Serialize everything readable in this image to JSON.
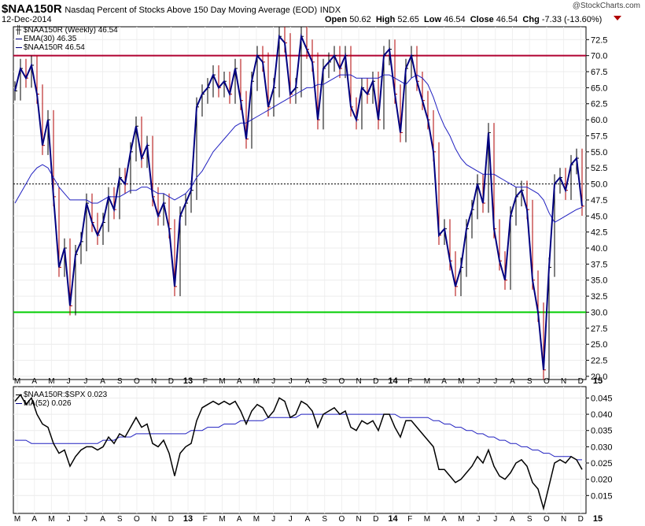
{
  "header": {
    "symbol": "$NAA150R",
    "description": "Nasdaq Percent of Stocks Above 150 Day Moving Average (EOD)",
    "exchange": "INDX",
    "date": "12-Dec-2014",
    "open_label": "Open",
    "open": "50.62",
    "high_label": "High",
    "high": "52.65",
    "low_label": "Low",
    "low": "46.54",
    "close_label": "Close",
    "close": "46.54",
    "chg_label": "Chg",
    "chg": "-7.33 (-13.60%)",
    "watermark": "@StockCharts.com"
  },
  "legend_main": {
    "price": "$NAA150R (Weekly) 46.54",
    "ema": "EMA(30) 46.35",
    "line": "$NAA150R 46.54"
  },
  "legend_lower": {
    "ratio": "$NAA150R:$SPX 0.023",
    "ma": "MA(52) 0.026"
  },
  "colors": {
    "price_up": "#000000",
    "price_down": "#b00000",
    "line": "#000080",
    "ema": "#2020c0",
    "level_70": "#b00030",
    "level_30": "#00cc00",
    "ratio": "#000000",
    "ma": "#2020c0"
  },
  "chart_data": [
    {
      "type": "line",
      "title": "$NAA150R Nasdaq Percent of Stocks Above 150 Day Moving Average (EOD)",
      "frequency": "weekly",
      "y_ticks": [
        20.0,
        22.5,
        25.0,
        27.5,
        30.0,
        32.5,
        35.0,
        37.5,
        40.0,
        42.5,
        45.0,
        47.5,
        50.0,
        52.5,
        55.0,
        57.5,
        60.0,
        62.5,
        65.0,
        67.5,
        70.0,
        72.5
      ],
      "ylim": [
        19.5,
        74.5
      ],
      "x_ticks": [
        "M",
        "A",
        "M",
        "J",
        "J",
        "A",
        "S",
        "O",
        "N",
        "D",
        "13",
        "F",
        "M",
        "A",
        "M",
        "J",
        "J",
        "A",
        "S",
        "O",
        "N",
        "D",
        "14",
        "F",
        "M",
        "A",
        "M",
        "J",
        "J",
        "A",
        "S",
        "O",
        "N",
        "D",
        "15"
      ],
      "reference_lines": [
        70,
        50,
        30
      ],
      "series": [
        {
          "name": "$NAA150R",
          "values": [
            64.5,
            68,
            66.5,
            68.5,
            64,
            56,
            60,
            48,
            37,
            40,
            31,
            39,
            41,
            47,
            44,
            42,
            44,
            48,
            46,
            51,
            50,
            55,
            59,
            54,
            56,
            48,
            45,
            47,
            43,
            34,
            45,
            47,
            49,
            62,
            64,
            65,
            67,
            65,
            66,
            64,
            68,
            63,
            57,
            66,
            70,
            69,
            62,
            65,
            73,
            72,
            64,
            65,
            73,
            71,
            69,
            60,
            68,
            69,
            70,
            68,
            70,
            62,
            60,
            65,
            64,
            66,
            60,
            70,
            71,
            64,
            58,
            68,
            70,
            66,
            63,
            60,
            55,
            42,
            43,
            38,
            34,
            37,
            43,
            46,
            50,
            47,
            58,
            43,
            38,
            35,
            45,
            48,
            49,
            46,
            35,
            30,
            21,
            37,
            50,
            51,
            49,
            53,
            54,
            46.54
          ]
        },
        {
          "name": "EMA(30)",
          "values": [
            47,
            48.5,
            50,
            51.5,
            52.5,
            53,
            52.5,
            51,
            49.5,
            48.5,
            47.5,
            47.5,
            47.5,
            47.5,
            47,
            47,
            47.5,
            48,
            48,
            48,
            48.5,
            49,
            49,
            49.5,
            49.5,
            49,
            48.5,
            48.5,
            48,
            47.5,
            48,
            48.5,
            49.5,
            51,
            52,
            53.5,
            55,
            56,
            57,
            58,
            59,
            59.5,
            59.5,
            60,
            60.5,
            61,
            61.5,
            62,
            62.5,
            63,
            63.5,
            64,
            64.5,
            65,
            65,
            65.5,
            65.5,
            66,
            66.5,
            67,
            67,
            67,
            66.5,
            66.5,
            66.5,
            66.5,
            66.5,
            67,
            67,
            66.5,
            66,
            65.5,
            66.5,
            67,
            66.5,
            65.5,
            63.5,
            61,
            59,
            57.5,
            55.5,
            54,
            53,
            52.5,
            52,
            51.5,
            51.5,
            51.5,
            51,
            50.5,
            50,
            49.5,
            49.5,
            49.5,
            49,
            48.5,
            47.5,
            45.5,
            44,
            44.5,
            45,
            45.5,
            46,
            46.35
          ]
        }
      ]
    },
    {
      "type": "line",
      "title": "$NAA150R:$SPX",
      "y_ticks": [
        0.015,
        0.02,
        0.025,
        0.03,
        0.035,
        0.04,
        0.045
      ],
      "ylim": [
        0.0095,
        0.0485
      ],
      "x_ticks": [
        "M",
        "A",
        "M",
        "J",
        "J",
        "A",
        "S",
        "O",
        "N",
        "D",
        "13",
        "F",
        "M",
        "A",
        "M",
        "J",
        "J",
        "A",
        "S",
        "O",
        "N",
        "D",
        "14",
        "F",
        "M",
        "A",
        "M",
        "J",
        "J",
        "A",
        "S",
        "O",
        "N",
        "D",
        "15"
      ],
      "series": [
        {
          "name": "$NAA150R:$SPX",
          "values": [
            0.044,
            0.046,
            0.043,
            0.045,
            0.04,
            0.037,
            0.036,
            0.031,
            0.028,
            0.029,
            0.024,
            0.027,
            0.029,
            0.03,
            0.03,
            0.029,
            0.03,
            0.033,
            0.031,
            0.034,
            0.033,
            0.036,
            0.039,
            0.036,
            0.037,
            0.031,
            0.03,
            0.032,
            0.028,
            0.021,
            0.028,
            0.03,
            0.031,
            0.038,
            0.042,
            0.043,
            0.044,
            0.043,
            0.044,
            0.043,
            0.044,
            0.041,
            0.037,
            0.041,
            0.043,
            0.042,
            0.039,
            0.041,
            0.045,
            0.044,
            0.039,
            0.04,
            0.044,
            0.043,
            0.041,
            0.036,
            0.04,
            0.041,
            0.042,
            0.04,
            0.041,
            0.036,
            0.035,
            0.038,
            0.037,
            0.038,
            0.035,
            0.04,
            0.04,
            0.036,
            0.033,
            0.038,
            0.038,
            0.036,
            0.034,
            0.032,
            0.03,
            0.023,
            0.023,
            0.021,
            0.019,
            0.02,
            0.022,
            0.024,
            0.027,
            0.025,
            0.029,
            0.024,
            0.021,
            0.02,
            0.022,
            0.025,
            0.026,
            0.024,
            0.019,
            0.017,
            0.011,
            0.018,
            0.025,
            0.026,
            0.025,
            0.027,
            0.026,
            0.023
          ]
        },
        {
          "name": "MA(52)",
          "values": [
            0.032,
            0.032,
            0.032,
            0.031,
            0.031,
            0.031,
            0.031,
            0.031,
            0.031,
            0.031,
            0.031,
            0.031,
            0.031,
            0.031,
            0.031,
            0.031,
            0.032,
            0.032,
            0.032,
            0.033,
            0.033,
            0.033,
            0.034,
            0.034,
            0.034,
            0.034,
            0.034,
            0.034,
            0.034,
            0.034,
            0.034,
            0.034,
            0.035,
            0.035,
            0.035,
            0.036,
            0.036,
            0.036,
            0.037,
            0.037,
            0.037,
            0.038,
            0.038,
            0.038,
            0.038,
            0.038,
            0.039,
            0.039,
            0.039,
            0.039,
            0.039,
            0.039,
            0.04,
            0.04,
            0.04,
            0.04,
            0.04,
            0.04,
            0.04,
            0.04,
            0.04,
            0.04,
            0.04,
            0.04,
            0.04,
            0.04,
            0.04,
            0.04,
            0.04,
            0.04,
            0.039,
            0.039,
            0.039,
            0.039,
            0.039,
            0.039,
            0.038,
            0.038,
            0.037,
            0.037,
            0.036,
            0.036,
            0.035,
            0.035,
            0.034,
            0.034,
            0.033,
            0.033,
            0.032,
            0.032,
            0.031,
            0.031,
            0.03,
            0.03,
            0.029,
            0.029,
            0.028,
            0.028,
            0.027,
            0.027,
            0.027,
            0.027,
            0.026,
            0.026
          ]
        }
      ]
    }
  ]
}
